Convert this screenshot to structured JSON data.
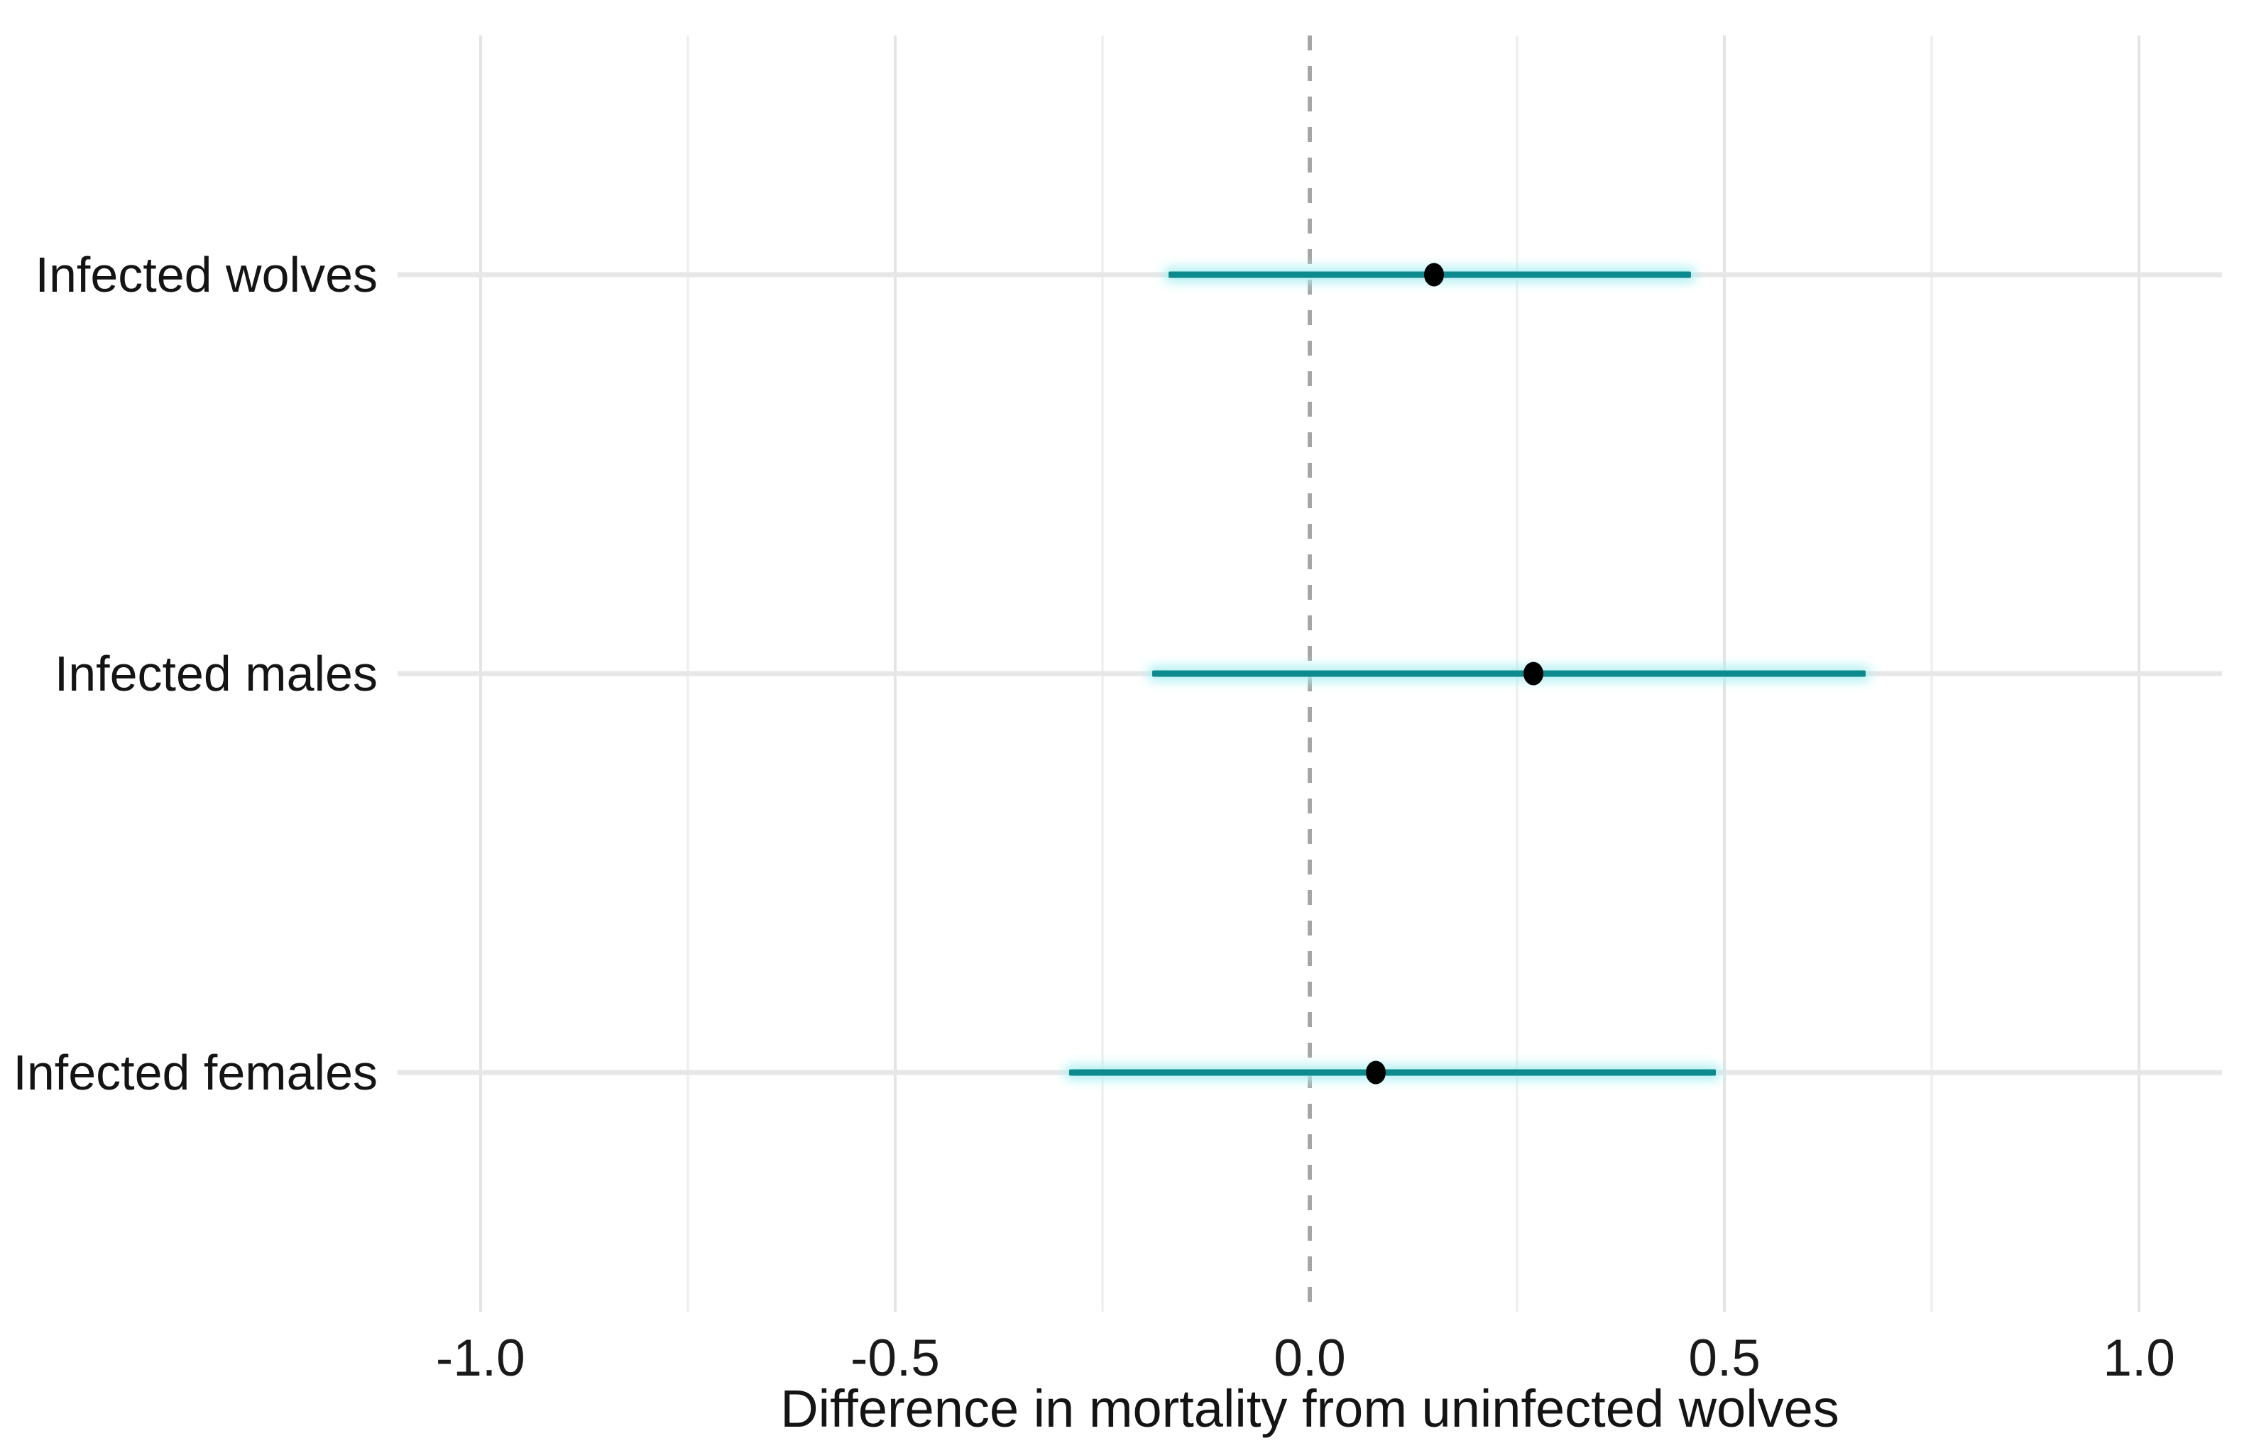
{
  "chart_data": {
    "type": "scatter",
    "subtype": "pointrange-forest-plot",
    "orientation": "horizontal",
    "title": "",
    "xlabel": "Difference in mortality from uninfected wolves",
    "ylabel": "",
    "xlim": [
      -1.1,
      1.1
    ],
    "x_major_ticks": [
      -1.0,
      -0.5,
      0.0,
      0.5,
      1.0
    ],
    "x_tick_labels": [
      "-1.0",
      "-0.5",
      "0.0",
      "0.5",
      "1.0"
    ],
    "x_minor_gridlines": [
      -0.75,
      -0.25,
      0.25,
      0.75
    ],
    "reference_line": {
      "x": 0,
      "style": "dashed"
    },
    "grid": true,
    "legend": false,
    "series": [
      {
        "label": "Infected wolves",
        "estimate": 0.15,
        "ci_low": -0.17,
        "ci_high": 0.46
      },
      {
        "label": "Infected males",
        "estimate": 0.27,
        "ci_low": -0.19,
        "ci_high": 0.67
      },
      {
        "label": "Infected females",
        "estimate": 0.08,
        "ci_low": -0.29,
        "ci_high": 0.49
      }
    ],
    "colors": {
      "interval": "#0d8a8d",
      "interval_glow": "#aef0f2",
      "point": "#000000",
      "reference_line": "#a6a6a6",
      "grid_major": "#e4e4e4",
      "grid_minor": "#ededed",
      "row_grid": "#e7e7e7",
      "text": "#141414",
      "background": "#ffffff"
    }
  }
}
